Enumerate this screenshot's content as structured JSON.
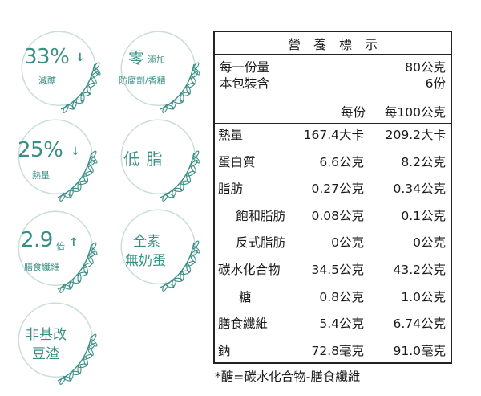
{
  "badges": [
    {
      "line1": "33%",
      "arrow": "↓",
      "line2": "減醣"
    },
    {
      "line1": "零",
      "line1b": "添加",
      "line2": "防腐劑/香精"
    },
    {
      "line1": "25%",
      "arrow": "↓",
      "line2": "熱量"
    },
    {
      "line1": "低 脂"
    },
    {
      "line1": "2.9",
      "mult": "倍",
      "arrow": "↑",
      "line2": "膳食纖維"
    },
    {
      "line1": "全素",
      "line2": "無奶蛋"
    },
    {
      "line1": "非基改",
      "line2": "豆渣"
    }
  ],
  "nutrition": {
    "title": "營　養　標　示",
    "serving_label": "每一份量",
    "serving_value": "80公克",
    "pack_label": "本包裝含",
    "pack_value": "6份",
    "col_per_serving": "每份",
    "col_per_100g": "每100公克",
    "rows": [
      {
        "name": "熱量",
        "per": "167.4大卡",
        "per100": "209.2大卡"
      },
      {
        "name": "蛋白質",
        "per": "6.6公克",
        "per100": "8.2公克"
      },
      {
        "name": "脂肪",
        "per": "0.27公克",
        "per100": "0.34公克"
      },
      {
        "name": "飽和脂肪",
        "per": "0.08公克",
        "per100": "0.1公克"
      },
      {
        "name": "反式脂肪",
        "per": "0公克",
        "per100": "0公克"
      },
      {
        "name": "碳水化合物",
        "per": "34.5公克",
        "per100": "43.2公克"
      },
      {
        "name": "糖",
        "per": "0.8公克",
        "per100": "1.0公克"
      },
      {
        "name": "膳食纖維",
        "per": "5.4公克",
        "per100": "6.74公克"
      },
      {
        "name": "鈉",
        "per": "72.8毫克",
        "per100": "91.0毫克"
      }
    ],
    "footnote": "*醣=碳水化合物-膳食纖維"
  },
  "colors": {
    "accent": "#3a8f85",
    "wreath": "#c9ded9",
    "text": "#1a1a1a"
  }
}
